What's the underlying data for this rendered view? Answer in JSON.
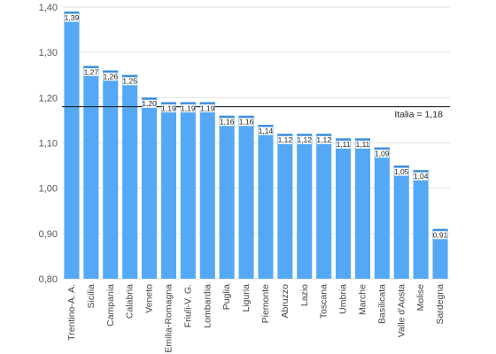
{
  "chart_data": {
    "type": "bar",
    "categories": [
      "Trentino-A. A.",
      "Sicilia",
      "Campania",
      "Calabria",
      "Veneto",
      "Emilia-Romagna",
      "Friuli-V. G.",
      "Lombardia",
      "Puglia",
      "Liguria",
      "Piemonte",
      "Abruzzo",
      "Lazio",
      "Toscana",
      "Umbria",
      "Marche",
      "Basilicata",
      "Valle d'Aosta",
      "Molise",
      "Sardegna"
    ],
    "values": [
      1.39,
      1.27,
      1.26,
      1.25,
      1.2,
      1.19,
      1.19,
      1.19,
      1.16,
      1.16,
      1.14,
      1.12,
      1.12,
      1.12,
      1.11,
      1.11,
      1.09,
      1.05,
      1.04,
      0.91
    ],
    "value_labels": [
      "1,39",
      "1,27",
      "1,26",
      "1,25",
      "1,20",
      "1,19",
      "1,19",
      "1,19",
      "1,16",
      "1,16",
      "1,14",
      "1,12",
      "1,12",
      "1,12",
      "1,11",
      "1,11",
      "1,09",
      "1,05",
      "1,04",
      "0,91"
    ],
    "y_ticks": [
      0.8,
      0.9,
      1.0,
      1.1,
      1.2,
      1.3,
      1.4
    ],
    "y_tick_labels": [
      "0,80",
      "0,90",
      "1,00",
      "1,10",
      "1,20",
      "1,30",
      "1,40"
    ],
    "ylim": [
      0.8,
      1.4
    ],
    "reference_line": {
      "value": 1.18,
      "label": "Italia = 1,18"
    },
    "grid": true,
    "bar_color": "#55a8f6",
    "bar_top_color": "#3d8fdc",
    "grid_color": "#e3e3e3",
    "title": "",
    "xlabel": "",
    "ylabel": ""
  }
}
